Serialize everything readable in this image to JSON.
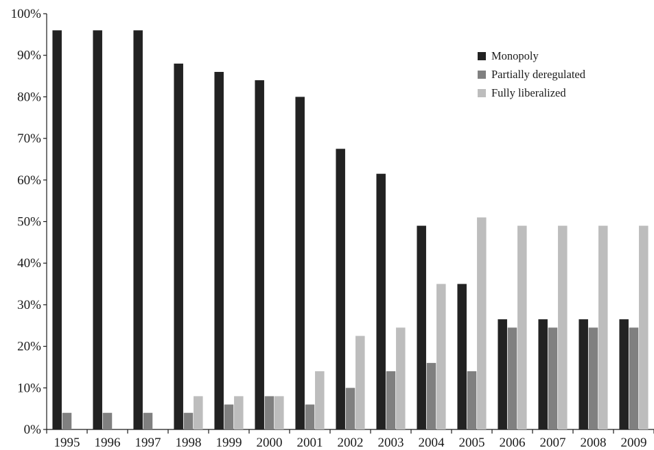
{
  "chart_data": {
    "type": "bar",
    "title": "",
    "xlabel": "",
    "ylabel": "",
    "categories": [
      "1995",
      "1996",
      "1997",
      "1998",
      "1999",
      "2000",
      "2001",
      "2002",
      "2003",
      "2004",
      "2005",
      "2006",
      "2007",
      "2008",
      "2009"
    ],
    "series": [
      {
        "name": "Monopoly",
        "color": "#222222",
        "values": [
          96,
          96,
          96,
          88,
          86,
          84,
          80,
          67.5,
          61.5,
          49,
          35,
          26.5,
          26.5,
          26.5,
          26.5
        ]
      },
      {
        "name": "Partially deregulated",
        "color": "#808080",
        "values": [
          4,
          4,
          4,
          4,
          6,
          8,
          6,
          10,
          14,
          16,
          14,
          24.5,
          24.5,
          24.5,
          24.5
        ]
      },
      {
        "name": "Fully liberalized",
        "color": "#bdbdbd",
        "values": [
          0,
          0,
          0,
          8,
          8,
          8,
          14,
          22.5,
          24.5,
          35,
          51,
          49,
          49,
          49,
          49
        ]
      }
    ],
    "y_ticks": [
      "0%",
      "10%",
      "20%",
      "30%",
      "40%",
      "50%",
      "60%",
      "70%",
      "80%",
      "90%",
      "100%"
    ],
    "ylim": [
      0,
      100
    ],
    "grid": false,
    "legend_position": "top-right"
  }
}
